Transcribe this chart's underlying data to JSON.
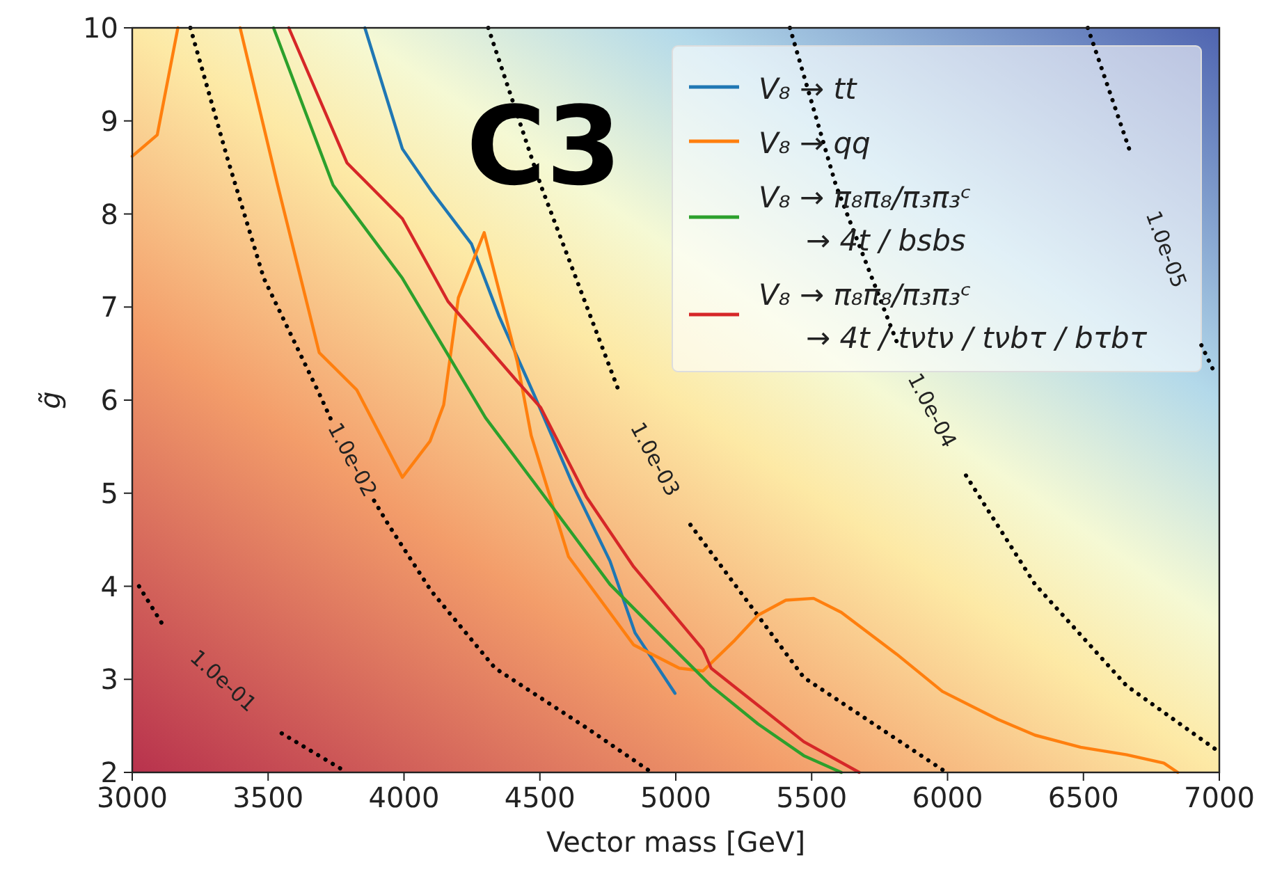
{
  "chart_data": {
    "type": "line",
    "xlabel": "Vector mass [GeV]",
    "ylabel": "g̃",
    "xlim": [
      3000,
      7000
    ],
    "ylim": [
      2,
      10
    ],
    "xticks": [
      3000,
      3500,
      4000,
      4500,
      5000,
      5500,
      6000,
      6500,
      7000
    ],
    "yticks": [
      2,
      3,
      4,
      5,
      6,
      7,
      8,
      9,
      10
    ],
    "grid": false,
    "legend": "top right",
    "annotations": [
      "C3"
    ],
    "series": [
      {
        "name": "1.0e-01",
        "color": "#000000",
        "line_style": "dotted",
        "x": [
          3025,
          3120,
          3330,
          3550,
          3790
        ],
        "values": [
          4.0,
          3.55,
          null,
          2.42,
          2.0
        ]
      },
      {
        "name": "1.0e-02",
        "color": "#000000",
        "line_style": "dotted",
        "x": [
          3214,
          3350,
          3484,
          3688,
          3730,
          3810,
          3890,
          3943,
          4100,
          4335,
          4671,
          4911
        ],
        "values": [
          10,
          8.6,
          7.31,
          6.07,
          5.8,
          null,
          4.92,
          4.66,
          3.95,
          3.12,
          2.48,
          2.0
        ]
      },
      {
        "name": "1.0e-03",
        "color": "#000000",
        "line_style": "dotted",
        "x": [
          4310,
          4503,
          4794,
          4920,
          5054,
          5217,
          5471,
          5996
        ],
        "values": [
          10,
          8.31,
          6.07,
          null,
          4.66,
          4.02,
          3.02,
          2.0
        ]
      },
      {
        "name": "1.0e-04",
        "color": "#000000",
        "line_style": "dotted",
        "x": [
          5420,
          5589,
          5818,
          5940,
          6068,
          6322,
          6659,
          6985
        ],
        "values": [
          10,
          8.31,
          6.59,
          null,
          5.19,
          4.02,
          2.93,
          2.25
        ]
      },
      {
        "name": "1.0e-05",
        "color": "#000000",
        "line_style": "dotted",
        "x": [
          6516,
          6674,
          6800,
          6934,
          6975
        ],
        "values": [
          10,
          8.65,
          null,
          6.59,
          6.34
        ]
      },
      {
        "name": "V₈ → tt",
        "color": "#1f77b4",
        "line_style": "solid",
        "x": [
          3856,
          3994,
          4100,
          4248,
          4350,
          4480,
          4620,
          4758,
          4850,
          4997
        ],
        "values": [
          10,
          8.7,
          8.25,
          7.68,
          6.9,
          6.05,
          5.1,
          4.27,
          3.5,
          2.85
        ]
      },
      {
        "name": "V₈ → qq",
        "color": "#ff7f0e",
        "line_style": "solid",
        "x": [
          3000,
          3092,
          3168,
          3280,
          3397,
          3535,
          3688,
          3826,
          3994,
          4096,
          4146,
          4200,
          4295,
          4417,
          4468,
          4605,
          4845,
          5013,
          5100,
          5217,
          5303,
          5405,
          5507,
          5609,
          5813,
          5981,
          6185,
          6322,
          6490,
          6659,
          6796,
          6847
        ],
        "values": [
          8.62,
          8.85,
          10,
          null,
          10,
          8.31,
          6.51,
          6.11,
          5.17,
          5.56,
          5.95,
          7.1,
          7.8,
          6.41,
          5.62,
          4.32,
          3.37,
          3.12,
          3.09,
          3.42,
          3.69,
          3.85,
          3.87,
          3.72,
          3.27,
          2.87,
          2.57,
          2.4,
          2.27,
          2.19,
          2.1,
          2.0
        ]
      },
      {
        "name": "V₈ → π₈π₈/π₃π₃ᶜ\n→ 4t / bsbs",
        "color": "#2ca02c",
        "line_style": "solid",
        "x": [
          3520,
          3739,
          3994,
          4300,
          4503,
          4758,
          5013,
          5130,
          5303,
          5471,
          5609
        ],
        "values": [
          10,
          8.31,
          7.31,
          5.81,
          5.02,
          4.02,
          3.27,
          2.93,
          2.52,
          2.18,
          2.0
        ]
      },
      {
        "name": "V₈ → π₈π₈/π₃π₃ᶜ\n→ 4t / tνtν / tνbτ / bτbτ",
        "color": "#d62728",
        "line_style": "solid",
        "x": [
          3576,
          3790,
          3994,
          4162,
          4417,
          4503,
          4671,
          4845,
          5100,
          5130,
          5303,
          5471,
          5675
        ],
        "values": [
          10,
          8.55,
          7.95,
          7.06,
          6.2,
          5.92,
          4.96,
          4.21,
          3.32,
          3.12,
          2.72,
          2.33,
          2.0
        ]
      }
    ]
  }
}
